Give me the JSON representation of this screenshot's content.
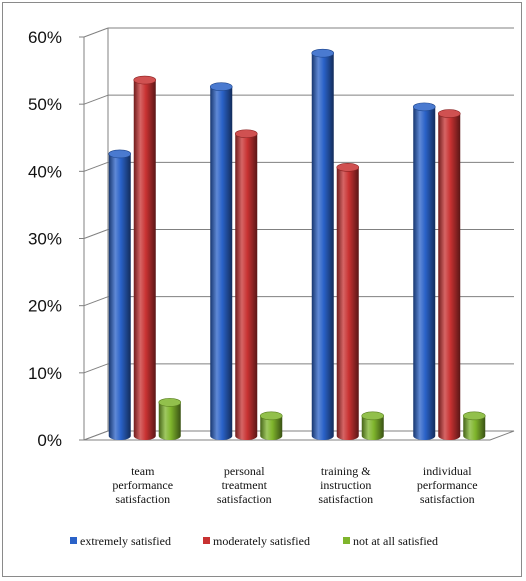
{
  "chart_data": {
    "type": "bar",
    "title": "",
    "xlabel": "",
    "ylabel": "",
    "ylim": [
      0,
      60
    ],
    "y_ticks": [
      "0%",
      "10%",
      "20%",
      "30%",
      "40%",
      "50%",
      "60%"
    ],
    "y_tick_values": [
      0,
      10,
      20,
      30,
      40,
      50,
      60
    ],
    "categories": [
      [
        "team",
        "performance",
        "satisfaction"
      ],
      [
        "personal",
        "treatment",
        "satisfaction"
      ],
      [
        "training &",
        "instruction",
        "satisfaction"
      ],
      [
        "individual",
        "performance",
        "satisfaction"
      ]
    ],
    "series": [
      {
        "name": "extremely satisfied",
        "color": "#2a62c8",
        "values": [
          42,
          52,
          57,
          49
        ]
      },
      {
        "name": "moderately satisfied",
        "color": "#c83232",
        "values": [
          53,
          45,
          40,
          48
        ]
      },
      {
        "name": "not at all satisfied",
        "color": "#7fb52c",
        "values": [
          5,
          3,
          3,
          3
        ]
      }
    ],
    "grid": true,
    "legend_position": "bottom",
    "style": "3d-cylinder"
  }
}
